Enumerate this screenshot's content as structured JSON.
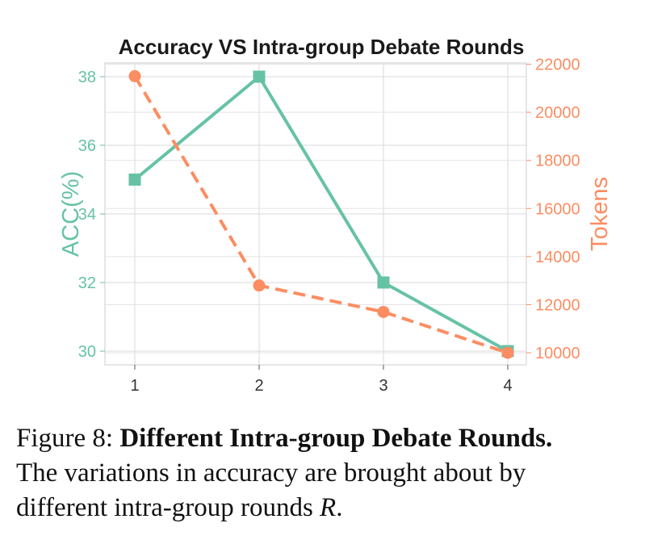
{
  "chart_data": {
    "type": "line",
    "title": "Accuracy VS Intra-group Debate Rounds",
    "xlabel": "",
    "x": [
      1,
      2,
      3,
      4
    ],
    "xticks": [
      "1",
      "2",
      "3",
      "4"
    ],
    "grid": true,
    "left_axis": {
      "label": "ACC(%)",
      "range": [
        29.6,
        38.4
      ],
      "ticks": [
        "30",
        "32",
        "34",
        "36",
        "38"
      ],
      "color": "#66c2a5"
    },
    "right_axis": {
      "label": "Tokens",
      "range": [
        9500,
        22050
      ],
      "ticks": [
        "10000",
        "12000",
        "14000",
        "16000",
        "18000",
        "20000",
        "22000"
      ],
      "color": "#fc8d62"
    },
    "series": [
      {
        "axis": "left",
        "values": [
          35,
          38,
          32,
          30
        ],
        "marker": "square",
        "line": "solid",
        "color": "#66c2a5"
      },
      {
        "axis": "right",
        "values": [
          21500,
          12800,
          11700,
          10000
        ],
        "marker": "circle",
        "line": "dashed",
        "color": "#fc8d62"
      }
    ]
  },
  "caption": {
    "prefix": "Figure 8: ",
    "bold": "Different Intra-group Debate Rounds.",
    "line2": "The variations in accuracy are brought about by",
    "line3_pre": "different intra-group rounds ",
    "line3_var": "R",
    "line3_post": "."
  }
}
